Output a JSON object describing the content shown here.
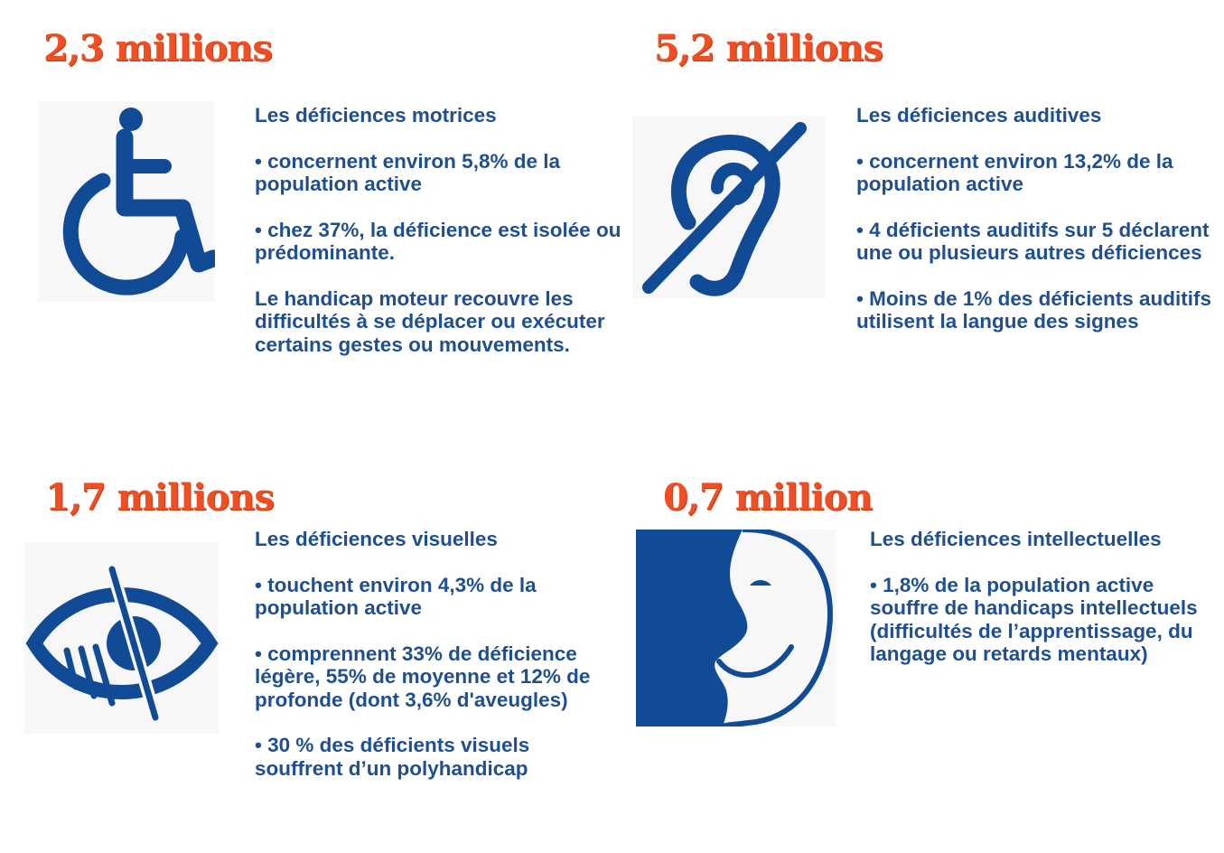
{
  "accent_color": "#f04e23",
  "text_color": "#1f4f8f",
  "icon_color": "#114b96",
  "sections": [
    {
      "stat": "2,3 millions",
      "icon": "wheelchair-icon",
      "title": "Les déficiences motrices",
      "paragraphs": [
        "• concernent environ 5,8% de la population active",
        "• chez 37%, la déficience est isolée ou prédominante.",
        "Le handicap moteur recouvre les difficultés à se déplacer ou exécuter certains gestes ou mouvements."
      ]
    },
    {
      "stat": "5,2 millions",
      "icon": "deaf-ear-icon",
      "title": "Les déficiences auditives",
      "paragraphs": [
        "• concernent environ 13,2% de la population active",
        "• 4 déficients auditifs sur 5 déclarent une ou plusieurs autres déficiences",
        "• Moins de 1% des déficients auditifs utilisent la langue des signes"
      ]
    },
    {
      "stat": "1,7 millions",
      "icon": "visual-impairment-eye-icon",
      "title": "Les déficiences visuelles",
      "paragraphs": [
        "• touchent environ 4,3% de la population active",
        "• comprennent 33% de déficience légère, 55% de moyenne et 12% de profonde (dont 3,6% d'aveugles)",
        "• 30 % des déficients visuels souffrent d’un polyhandicap"
      ]
    },
    {
      "stat": "0,7 million",
      "icon": "smiling-face-icon",
      "title": "Les déficiences intellectuelles",
      "paragraphs": [
        "• 1,8% de la population active souffre de handicaps intellectuels (difficultés de l’apprentissage, du langage ou retards mentaux)"
      ]
    }
  ]
}
